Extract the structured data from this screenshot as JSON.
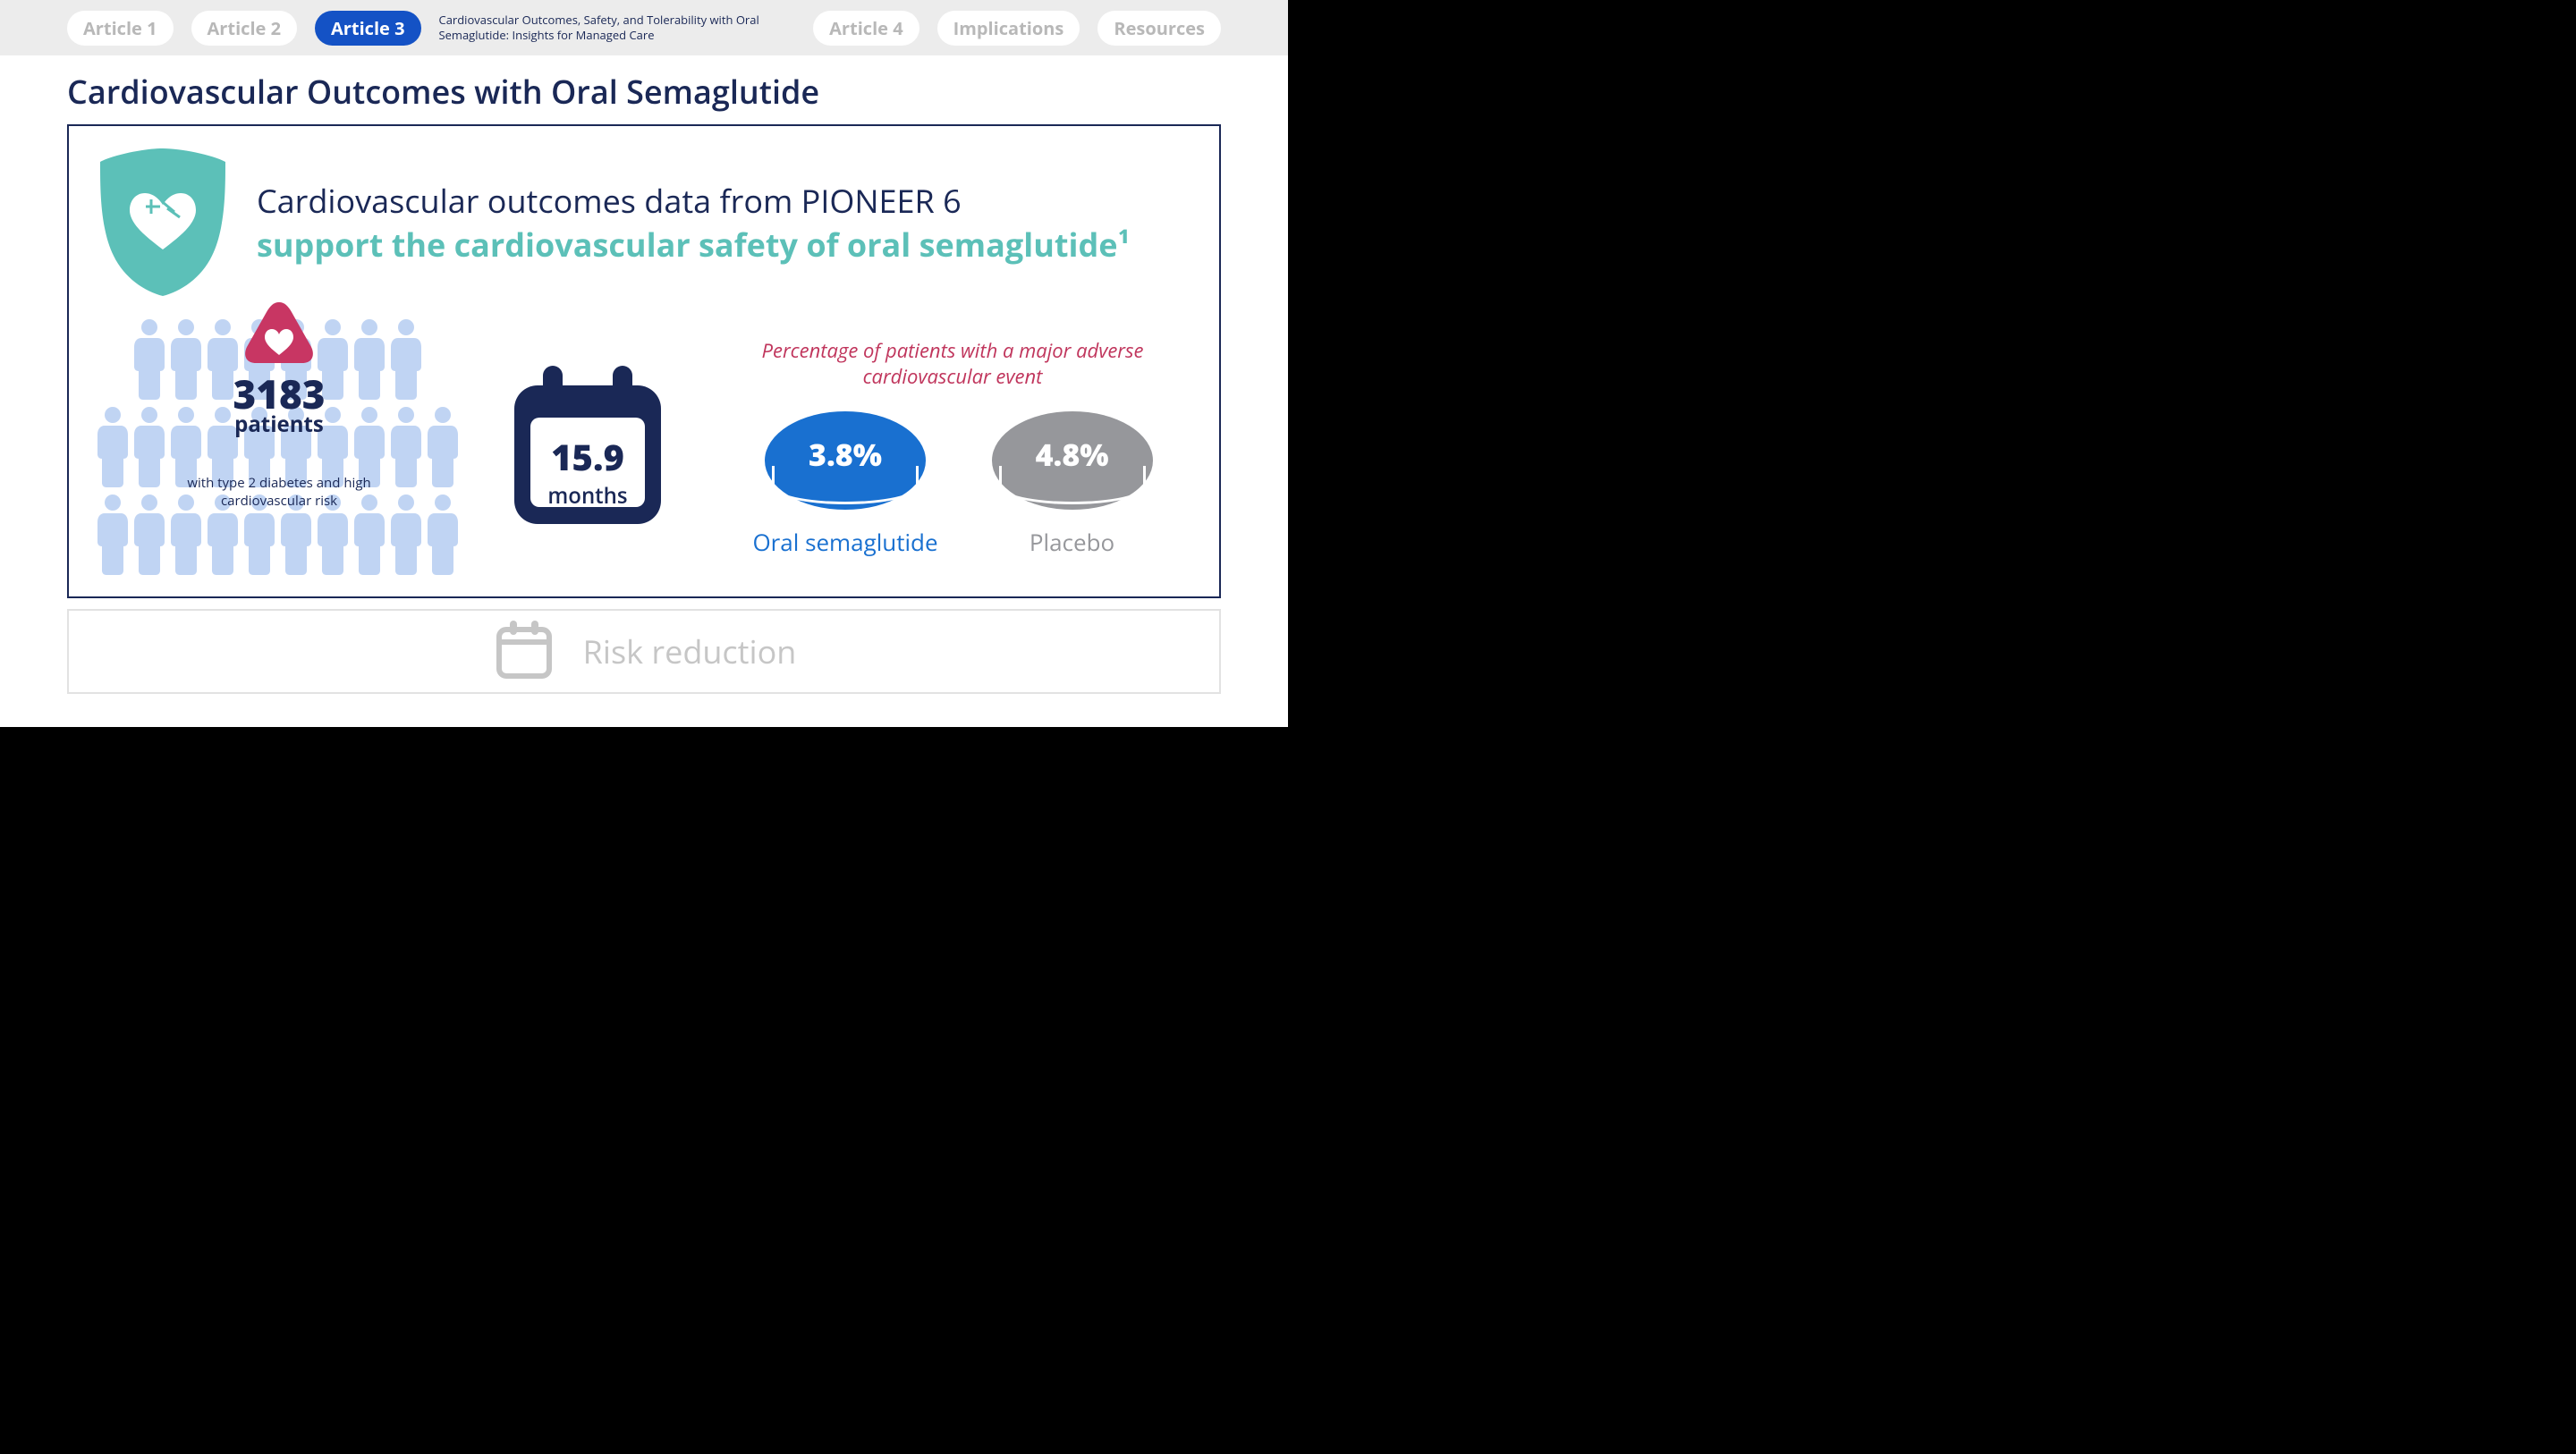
{
  "nav": {
    "items": [
      {
        "label": "Article 1",
        "active": false
      },
      {
        "label": "Article 2",
        "active": false
      },
      {
        "label": "Article 3",
        "active": true
      },
      {
        "label": "Article 4",
        "active": false
      },
      {
        "label": "Implications",
        "active": false
      },
      {
        "label": "Resources",
        "active": false
      }
    ],
    "subtitle": "Cardiovascular Outcomes, Safety, and Tolerability with Oral Semaglutide: Insights for Managed Care"
  },
  "page_title": "Cardiovascular Outcomes with Oral Semaglutide",
  "hero": {
    "line1": "Cardiovascular outcomes data from PIONEER 6",
    "line2": "support the cardiovascular safety of oral semaglutide¹"
  },
  "patients": {
    "count": "3183",
    "label": "patients",
    "sub": "with type 2 diabetes and high cardiovascular risk",
    "people_color": "#c0d4f3",
    "rows": 3,
    "cols_per_row": [
      8,
      10,
      10
    ],
    "triangle_color": "#c83663"
  },
  "calendar": {
    "value": "15.9",
    "unit": "months",
    "frame_color": "#1a2856"
  },
  "mace": {
    "title": "Percentage of patients with a major adverse cardiovascular event",
    "groups": [
      {
        "value": "3.8%",
        "label": "Oral semaglutide",
        "color": "#1970d0"
      },
      {
        "value": "4.8%",
        "label": "Placebo",
        "color": "#96979b"
      }
    ]
  },
  "lower": {
    "label": "Risk reduction",
    "icon_color": "#c6c6c6"
  },
  "colors": {
    "navy": "#1a2856",
    "teal": "#5cc0b8",
    "pink": "#c0355c",
    "blue": "#1970d0",
    "gray": "#96979b",
    "lightblue": "#c0d4f3",
    "magenta": "#c83663"
  }
}
